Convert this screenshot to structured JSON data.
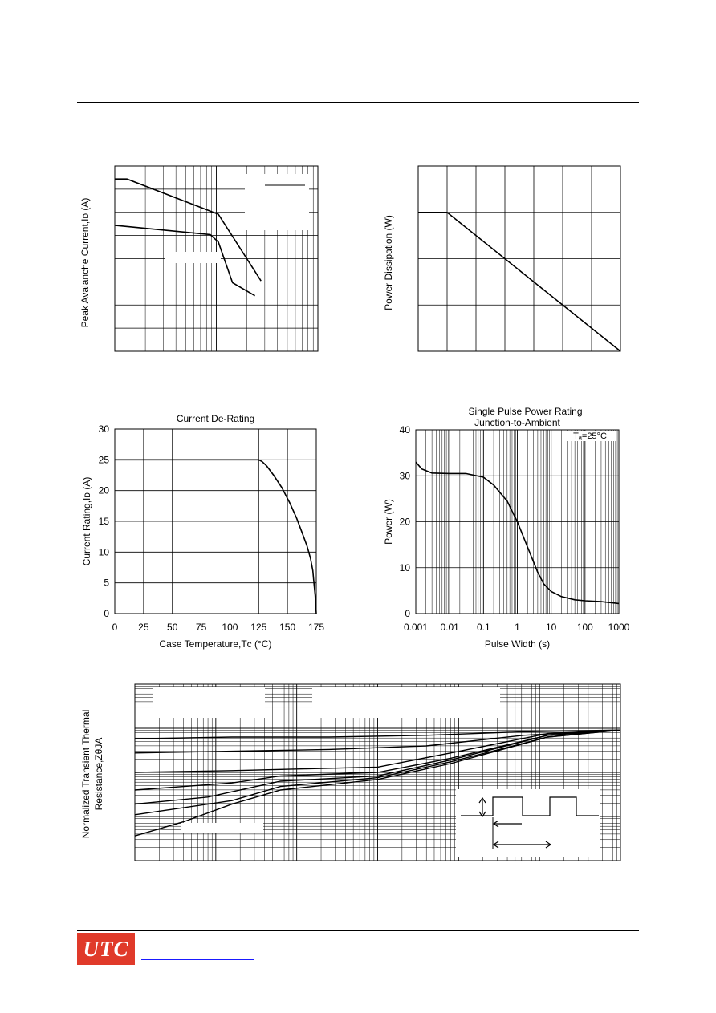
{
  "page": {
    "logo_text": "UTC",
    "colors": {
      "logo_bg": "#e03a2a",
      "logo_text": "#ffffff",
      "link": "#1a1aff",
      "line": "#000000"
    }
  },
  "chart_data": [
    {
      "id": "peak-avalanche",
      "type": "line",
      "title": "",
      "xlabel": "",
      "ylabel": "Peak Avalanche Current,Iᴅ (A)",
      "x_scale": "log",
      "grid": true,
      "legend": "top-right",
      "series": [
        {
          "points": [
            [
              0.0,
              0.93
            ],
            [
              0.06,
              0.93
            ],
            [
              0.51,
              0.74
            ],
            [
              0.72,
              0.38
            ]
          ]
        },
        {
          "points": [
            [
              0.0,
              0.68
            ],
            [
              0.47,
              0.63
            ],
            [
              0.51,
              0.59
            ],
            [
              0.58,
              0.37
            ],
            [
              0.69,
              0.3
            ]
          ]
        }
      ]
    },
    {
      "id": "power-dissipation",
      "type": "line",
      "title": "",
      "xlabel": "",
      "ylabel": "Power Dissipation (W)",
      "grid": true,
      "series": [
        {
          "points": [
            [
              0.0,
              0.75
            ],
            [
              0.143,
              0.75
            ],
            [
              1.0,
              0.0
            ]
          ]
        }
      ]
    },
    {
      "id": "current-derating",
      "type": "line",
      "title": "Current De-Rating",
      "xlabel": "Case Temperature,Tᴄ (°C)",
      "ylabel": "Current Rating,Iᴅ (A)",
      "xlim": [
        0,
        175
      ],
      "ylim": [
        0,
        30
      ],
      "x_ticks": [
        "0",
        "25",
        "50",
        "75",
        "100",
        "125",
        "150",
        "175"
      ],
      "y_ticks": [
        "0",
        "5",
        "10",
        "15",
        "20",
        "25",
        "30"
      ],
      "grid": true,
      "series": [
        {
          "x": [
            0,
            125,
            128,
            132,
            138,
            145,
            152,
            158,
            163,
            167,
            170,
            172,
            173,
            174,
            175
          ],
          "y": [
            25,
            25,
            24.7,
            24,
            22.5,
            20.5,
            18,
            15.5,
            13,
            11,
            9,
            7,
            5,
            3,
            0
          ]
        }
      ]
    },
    {
      "id": "single-pulse",
      "type": "line",
      "title": "Single Pulse Power Rating Junction-to-Ambient",
      "annotation": "Tₐ=25°C",
      "xlabel": "Pulse Width (s)",
      "ylabel": "Power (W)",
      "x_scale": "log",
      "xlim": [
        0.001,
        1000
      ],
      "ylim": [
        0,
        40
      ],
      "x_ticks": [
        "0.001",
        "0.01",
        "0.1",
        "1",
        "10",
        "100",
        "1000"
      ],
      "y_ticks": [
        "0",
        "10",
        "20",
        "30",
        "40"
      ],
      "grid": true,
      "series": [
        {
          "x": [
            0.001,
            0.0015,
            0.003,
            0.01,
            0.03,
            0.1,
            0.2,
            0.5,
            1,
            2,
            4,
            6,
            10,
            20,
            50,
            100,
            300,
            1000
          ],
          "y": [
            33,
            31.5,
            30.6,
            30.5,
            30.5,
            29.7,
            28,
            24.5,
            20,
            14.5,
            9,
            6.5,
            4.8,
            3.7,
            3.0,
            2.8,
            2.6,
            2.2
          ]
        }
      ]
    },
    {
      "id": "transient-thermal",
      "type": "line",
      "title": "",
      "xlabel": "",
      "ylabel": "Normalized Transient Thermal Resistance,ZθJA",
      "x_scale": "log",
      "y_scale": "log",
      "grid": true,
      "legend": "top",
      "series": [
        {
          "points": [
            [
              0.0,
              0.69
            ],
            [
              0.2,
              0.7
            ],
            [
              0.4,
              0.7
            ],
            [
              0.6,
              0.71
            ],
            [
              0.8,
              0.73
            ],
            [
              1.0,
              0.74
            ]
          ]
        },
        {
          "points": [
            [
              0.0,
              0.61
            ],
            [
              0.2,
              0.62
            ],
            [
              0.4,
              0.63
            ],
            [
              0.6,
              0.65
            ],
            [
              0.8,
              0.71
            ],
            [
              1.0,
              0.74
            ]
          ]
        },
        {
          "points": [
            [
              0.0,
              0.5
            ],
            [
              0.2,
              0.51
            ],
            [
              0.35,
              0.52
            ],
            [
              0.5,
              0.53
            ],
            [
              0.65,
              0.61
            ],
            [
              0.85,
              0.72
            ],
            [
              1.0,
              0.74
            ]
          ]
        },
        {
          "points": [
            [
              0.0,
              0.4
            ],
            [
              0.2,
              0.44
            ],
            [
              0.3,
              0.48
            ],
            [
              0.5,
              0.5
            ],
            [
              0.65,
              0.58
            ],
            [
              0.85,
              0.71
            ],
            [
              1.0,
              0.74
            ]
          ]
        },
        {
          "points": [
            [
              0.0,
              0.32
            ],
            [
              0.15,
              0.36
            ],
            [
              0.3,
              0.45
            ],
            [
              0.5,
              0.48
            ],
            [
              0.65,
              0.57
            ],
            [
              0.85,
              0.71
            ],
            [
              1.0,
              0.74
            ]
          ]
        },
        {
          "points": [
            [
              0.0,
              0.26
            ],
            [
              0.2,
              0.34
            ],
            [
              0.3,
              0.42
            ],
            [
              0.5,
              0.47
            ],
            [
              0.65,
              0.56
            ],
            [
              0.85,
              0.7
            ],
            [
              1.0,
              0.74
            ]
          ]
        },
        {
          "points": [
            [
              0.0,
              0.14
            ],
            [
              0.1,
              0.22
            ],
            [
              0.2,
              0.32
            ],
            [
              0.3,
              0.4
            ],
            [
              0.5,
              0.46
            ],
            [
              0.65,
              0.55
            ],
            [
              0.85,
              0.7
            ],
            [
              1.0,
              0.74
            ]
          ]
        }
      ]
    }
  ]
}
